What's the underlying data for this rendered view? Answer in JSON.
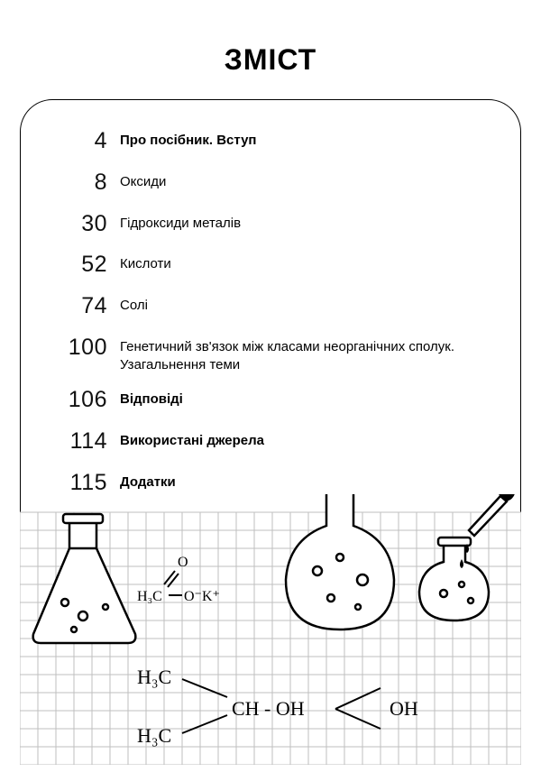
{
  "title": "ЗМІСТ",
  "toc": [
    {
      "page": "4",
      "label": "Про посібник. Вступ",
      "bold": true
    },
    {
      "page": "8",
      "label": "Оксиди",
      "bold": false
    },
    {
      "page": "30",
      "label": "Гідроксиди металів",
      "bold": false
    },
    {
      "page": "52",
      "label": "Кислоти",
      "bold": false
    },
    {
      "page": "74",
      "label": "Солі",
      "bold": false
    },
    {
      "page": "100",
      "label": "Генетичний зв'язок між класами неорганічних сполук. Узагальнення теми",
      "bold": false
    },
    {
      "page": "106",
      "label": "Відповіді",
      "bold": true
    },
    {
      "page": "114",
      "label": "Використані джерела",
      "bold": true
    },
    {
      "page": "115",
      "label": "Додатки",
      "bold": true
    }
  ],
  "style": {
    "title_fontsize": 32,
    "num_fontsize": 25,
    "label_fontsize": 15,
    "row_gap": 12,
    "text_color": "#000000",
    "background_color": "#ffffff",
    "frame_border_color": "#000000",
    "frame_corner_radius": 36,
    "grid_color": "#bfbfbf",
    "grid_cell": 20
  },
  "illustration": {
    "description": "Hand-drawn chemistry glassware (triangular flask, two round flasks, dropper), molecular formulas on graph-paper grid",
    "formulas": [
      "H₃C⁻ O⁻ K⁺",
      "H₃C",
      "H₃C",
      "CH - OH",
      "OH"
    ],
    "stroke_color": "#000000",
    "grid_color": "#bfbfbf",
    "grid_cell": 20
  }
}
